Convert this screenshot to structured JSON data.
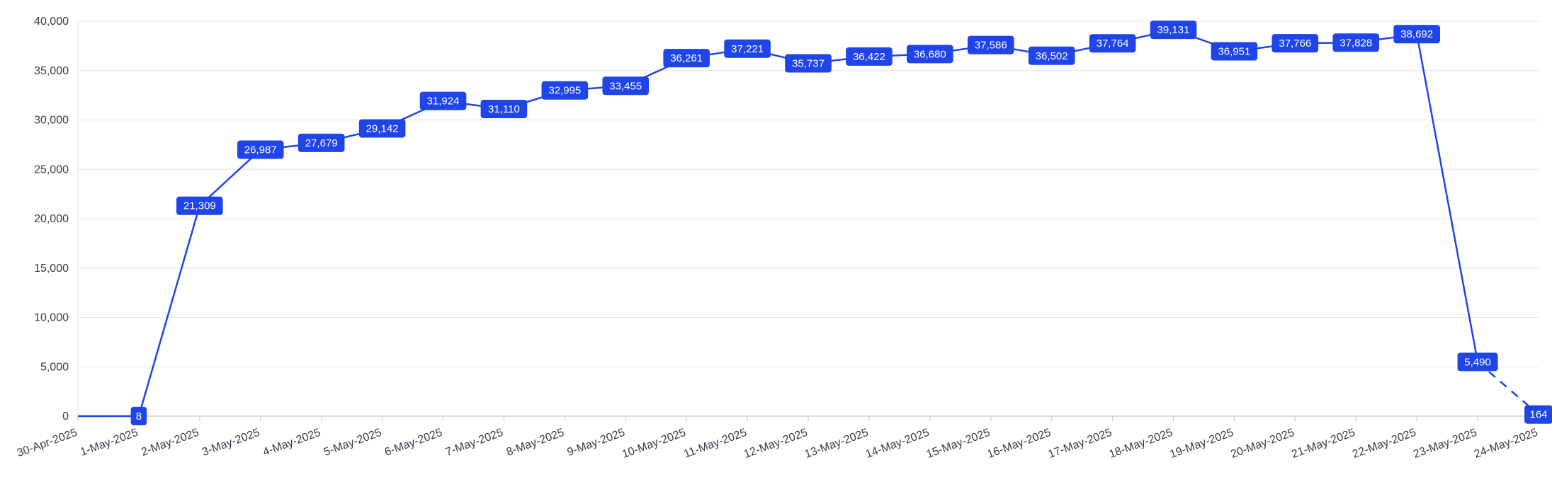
{
  "chart_data": {
    "type": "line",
    "title": "",
    "xlabel": "",
    "ylabel": "",
    "ylim": [
      0,
      40000
    ],
    "y_ticks": [
      "0",
      "5,000",
      "10,000",
      "15,000",
      "20,000",
      "25,000",
      "30,000",
      "35,000",
      "40,000"
    ],
    "grid": true,
    "categories": [
      "30-Apr-2025",
      "1-May-2025",
      "2-May-2025",
      "3-May-2025",
      "4-May-2025",
      "5-May-2025",
      "6-May-2025",
      "7-May-2025",
      "8-May-2025",
      "9-May-2025",
      "10-May-2025",
      "11-May-2025",
      "12-May-2025",
      "13-May-2025",
      "14-May-2025",
      "15-May-2025",
      "16-May-2025",
      "17-May-2025",
      "18-May-2025",
      "19-May-2025",
      "20-May-2025",
      "21-May-2025",
      "22-May-2025",
      "23-May-2025",
      "24-May-2025"
    ],
    "series": [
      {
        "values": [
          0,
          8,
          21309,
          26987,
          27679,
          29142,
          31924,
          31110,
          32995,
          33455,
          36261,
          37221,
          35737,
          36422,
          36680,
          37586,
          36502,
          37764,
          39131,
          36951,
          37766,
          37828,
          38692,
          5490,
          164
        ],
        "data_labels": [
          "",
          "8",
          "21,309",
          "26,987",
          "27,679",
          "29,142",
          "31,924",
          "31,110",
          "32,995",
          "33,455",
          "36,261",
          "37,221",
          "35,737",
          "36,422",
          "36,680",
          "37,586",
          "36,502",
          "37,764",
          "39,131",
          "36,951",
          "37,766",
          "37,828",
          "38,692",
          "5,490",
          "164"
        ],
        "dashed_from_index": 23
      }
    ],
    "colors": {
      "line": "#1f44e8",
      "label_bg": "#1f44e8",
      "label_text": "#ffffff",
      "grid": "#e3e3e8",
      "axis_text": "#3a3a44"
    }
  }
}
